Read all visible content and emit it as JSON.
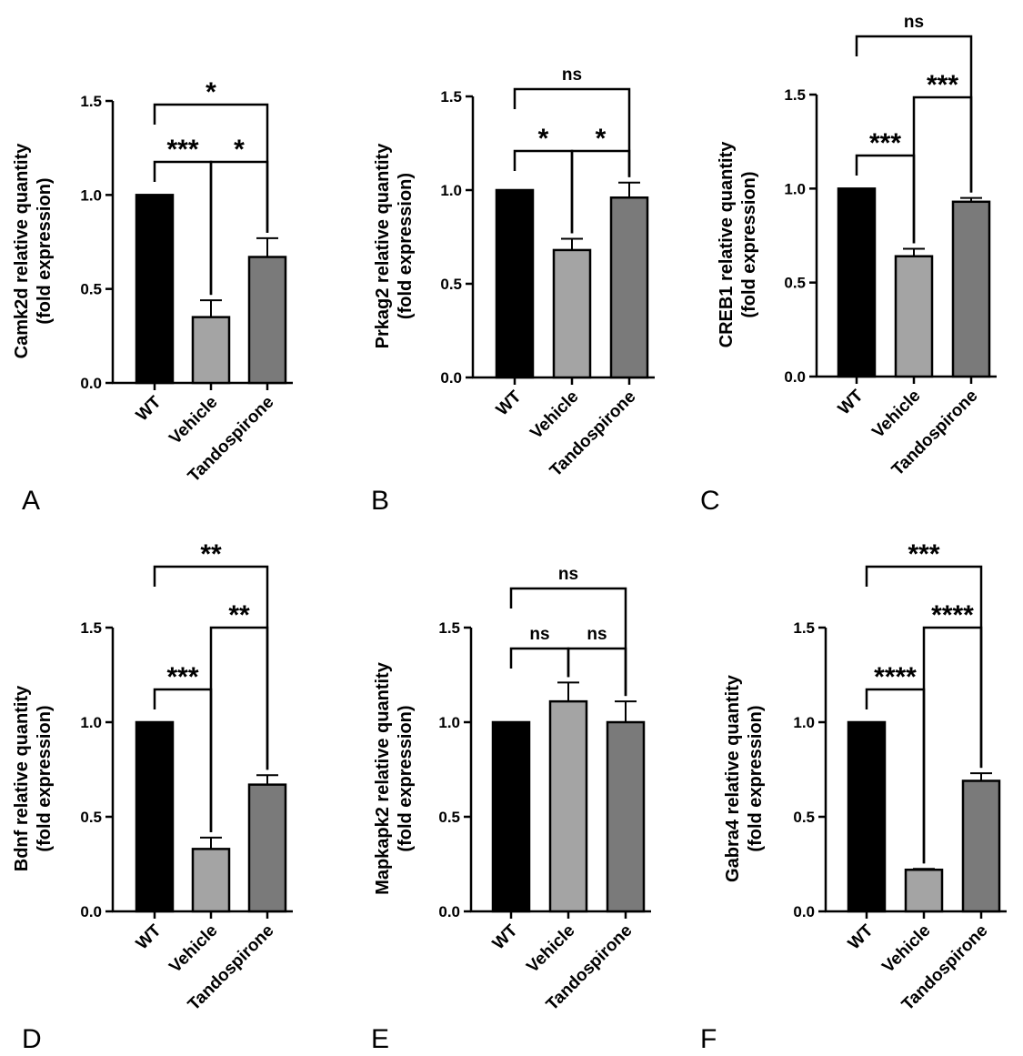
{
  "chart_data": [
    {
      "panel": "A",
      "type": "bar",
      "ylabel_line1": "Camk2d relative quantity",
      "ylabel_line2": "(fold expression)",
      "categories": [
        "WT",
        "Vehicle",
        "Tandospirone"
      ],
      "values": [
        1.0,
        0.35,
        0.67
      ],
      "errors": [
        0.0,
        0.09,
        0.1
      ],
      "ylim": [
        0,
        1.5
      ],
      "yticks": [
        "0.0",
        "0.5",
        "1.0",
        "1.5"
      ],
      "colors": [
        "#000000",
        "#a4a4a4",
        "#7a7a7a"
      ],
      "comparisons": [
        {
          "from": 0,
          "to": 1,
          "label": "***"
        },
        {
          "from": 1,
          "to": 2,
          "label": "*"
        },
        {
          "from": 0,
          "to": 2,
          "label": "*"
        }
      ]
    },
    {
      "panel": "B",
      "type": "bar",
      "ylabel_line1": "Prkag2 relative quantity",
      "ylabel_line2": "(fold expression)",
      "categories": [
        "WT",
        "Vehicle",
        "Tandospirone"
      ],
      "values": [
        1.0,
        0.68,
        0.96
      ],
      "errors": [
        0.0,
        0.06,
        0.08
      ],
      "ylim": [
        0,
        1.5
      ],
      "yticks": [
        "0.0",
        "0.5",
        "1.0",
        "1.5"
      ],
      "colors": [
        "#000000",
        "#a4a4a4",
        "#7a7a7a"
      ],
      "comparisons": [
        {
          "from": 0,
          "to": 1,
          "label": "*"
        },
        {
          "from": 1,
          "to": 2,
          "label": "*"
        },
        {
          "from": 0,
          "to": 2,
          "label": "ns"
        }
      ]
    },
    {
      "panel": "C",
      "type": "bar",
      "ylabel_line1": "CREB1 relative quantity",
      "ylabel_line2": "(fold expression)",
      "categories": [
        "WT",
        "Vehicle",
        "Tandospirone"
      ],
      "values": [
        1.0,
        0.64,
        0.93
      ],
      "errors": [
        0.0,
        0.04,
        0.02
      ],
      "ylim": [
        0,
        1.5
      ],
      "yticks": [
        "0.0",
        "0.5",
        "1.0",
        "1.5"
      ],
      "colors": [
        "#000000",
        "#a4a4a4",
        "#7a7a7a"
      ],
      "comparisons": [
        {
          "from": 0,
          "to": 1,
          "label": "***"
        },
        {
          "from": 1,
          "to": 2,
          "label": "***"
        },
        {
          "from": 0,
          "to": 2,
          "label": "ns"
        }
      ]
    },
    {
      "panel": "D",
      "type": "bar",
      "ylabel_line1": "Bdnf relative quantity",
      "ylabel_line2": "(fold expression)",
      "categories": [
        "WT",
        "Vehicle",
        "Tandospirone"
      ],
      "values": [
        1.0,
        0.33,
        0.67
      ],
      "errors": [
        0.0,
        0.06,
        0.05
      ],
      "ylim": [
        0,
        1.5
      ],
      "yticks": [
        "0.0",
        "0.5",
        "1.0",
        "1.5"
      ],
      "colors": [
        "#000000",
        "#a4a4a4",
        "#7a7a7a"
      ],
      "comparisons": [
        {
          "from": 0,
          "to": 1,
          "label": "***"
        },
        {
          "from": 1,
          "to": 2,
          "label": "**"
        },
        {
          "from": 0,
          "to": 2,
          "label": "**"
        }
      ]
    },
    {
      "panel": "E",
      "type": "bar",
      "ylabel_line1": "Mapkapk2 relative quantity",
      "ylabel_line2": "(fold expression)",
      "categories": [
        "WT",
        "Vehicle",
        "Tandospirone"
      ],
      "values": [
        1.0,
        1.11,
        1.0
      ],
      "errors": [
        0.0,
        0.1,
        0.11
      ],
      "ylim": [
        0,
        1.5
      ],
      "yticks": [
        "0.0",
        "0.5",
        "1.0",
        "1.5"
      ],
      "colors": [
        "#000000",
        "#a4a4a4",
        "#7a7a7a"
      ],
      "comparisons": [
        {
          "from": 0,
          "to": 1,
          "label": "ns"
        },
        {
          "from": 1,
          "to": 2,
          "label": "ns"
        },
        {
          "from": 0,
          "to": 2,
          "label": "ns"
        }
      ]
    },
    {
      "panel": "F",
      "type": "bar",
      "ylabel_line1": "Gabra4 relative quantity",
      "ylabel_line2": "(fold expression)",
      "categories": [
        "WT",
        "Vehicle",
        "Tandospirone"
      ],
      "values": [
        1.0,
        0.22,
        0.69
      ],
      "errors": [
        0.0,
        0.005,
        0.04
      ],
      "ylim": [
        0,
        1.5
      ],
      "yticks": [
        "0.0",
        "0.5",
        "1.0",
        "1.5"
      ],
      "colors": [
        "#000000",
        "#a4a4a4",
        "#7a7a7a"
      ],
      "comparisons": [
        {
          "from": 0,
          "to": 1,
          "label": "****"
        },
        {
          "from": 1,
          "to": 2,
          "label": "****"
        },
        {
          "from": 0,
          "to": 2,
          "label": "***"
        }
      ]
    }
  ]
}
